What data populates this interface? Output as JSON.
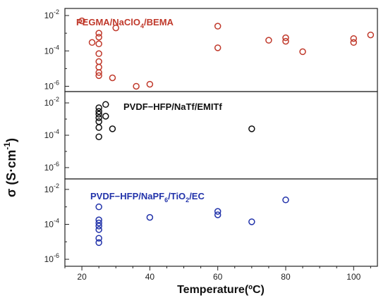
{
  "chart_data": {
    "type": "scatter",
    "layout": "three stacked panels sharing one x axis",
    "xlabel": "Temperature(ºC)",
    "ylabel_main": "σ (S·cm",
    "ylabel_exp": "-1",
    "ylabel_close": ")",
    "xlim": [
      15,
      107
    ],
    "x_ticks": [
      20,
      40,
      60,
      80,
      100
    ],
    "x_tick_labels": [
      "20",
      "40",
      "60",
      "80",
      "100"
    ],
    "y_scale": "log",
    "grid": false,
    "marker": "open circle",
    "panels": [
      {
        "label_parts": [
          [
            "PEGMA/NaClO",
            false
          ],
          [
            "4",
            true
          ],
          [
            "/BEMA",
            false
          ]
        ],
        "color": "#c0392b",
        "ylim_log10": [
          -6.3,
          -1.6
        ],
        "y_ticks_log10": [
          -2,
          -4,
          -6
        ],
        "points": [
          {
            "x": 20,
            "y": 0.005
          },
          {
            "x": 23,
            "y": 0.0003
          },
          {
            "x": 25,
            "y": 0.001
          },
          {
            "x": 25,
            "y": 0.0006
          },
          {
            "x": 25,
            "y": 0.00025
          },
          {
            "x": 25,
            "y": 7e-05
          },
          {
            "x": 25,
            "y": 2.5e-05
          },
          {
            "x": 25,
            "y": 1.2e-05
          },
          {
            "x": 25,
            "y": 6e-06
          },
          {
            "x": 25,
            "y": 4e-06
          },
          {
            "x": 30,
            "y": 0.002
          },
          {
            "x": 29,
            "y": 3e-06
          },
          {
            "x": 36,
            "y": 1e-06
          },
          {
            "x": 40,
            "y": 1.3e-06
          },
          {
            "x": 60,
            "y": 0.0025
          },
          {
            "x": 60,
            "y": 0.00015
          },
          {
            "x": 75,
            "y": 0.0004
          },
          {
            "x": 80,
            "y": 0.00055
          },
          {
            "x": 80,
            "y": 0.00035
          },
          {
            "x": 85,
            "y": 9e-05
          },
          {
            "x": 100,
            "y": 0.0005
          },
          {
            "x": 100,
            "y": 0.0003
          },
          {
            "x": 105,
            "y": 0.0008
          }
        ]
      },
      {
        "label_parts": [
          [
            "PVDF−HFP/NaTf/EMITf",
            false
          ]
        ],
        "color": "#111111",
        "ylim_log10": [
          -6.7,
          -1.3
        ],
        "y_ticks_log10": [
          -2,
          -4,
          -6
        ],
        "points": [
          {
            "x": 25,
            "y": 0.005
          },
          {
            "x": 25,
            "y": 0.003
          },
          {
            "x": 25,
            "y": 0.002
          },
          {
            "x": 25,
            "y": 0.0012
          },
          {
            "x": 25,
            "y": 0.0007
          },
          {
            "x": 25,
            "y": 0.0003
          },
          {
            "x": 25,
            "y": 8e-05
          },
          {
            "x": 27,
            "y": 0.008
          },
          {
            "x": 27,
            "y": 0.0015
          },
          {
            "x": 29,
            "y": 0.00025
          },
          {
            "x": 70,
            "y": 0.00025
          }
        ]
      },
      {
        "label_parts": [
          [
            "PVDF−HFP/NaPF",
            false
          ],
          [
            "6",
            true
          ],
          [
            "/TiO",
            false
          ],
          [
            "2",
            true
          ],
          [
            "/EC",
            false
          ]
        ],
        "color": "#2233aa",
        "ylim_log10": [
          -6.4,
          -1.4
        ],
        "y_ticks_log10": [
          -2,
          -4,
          -6
        ],
        "points": [
          {
            "x": 25,
            "y": 0.001
          },
          {
            "x": 25,
            "y": 0.00018
          },
          {
            "x": 25,
            "y": 0.00012
          },
          {
            "x": 25,
            "y": 8e-05
          },
          {
            "x": 25,
            "y": 5e-05
          },
          {
            "x": 25,
            "y": 1.6e-05
          },
          {
            "x": 25,
            "y": 9e-06
          },
          {
            "x": 40,
            "y": 0.00025
          },
          {
            "x": 60,
            "y": 0.00055
          },
          {
            "x": 60,
            "y": 0.00035
          },
          {
            "x": 70,
            "y": 0.00014
          },
          {
            "x": 80,
            "y": 0.0025
          }
        ]
      }
    ]
  }
}
